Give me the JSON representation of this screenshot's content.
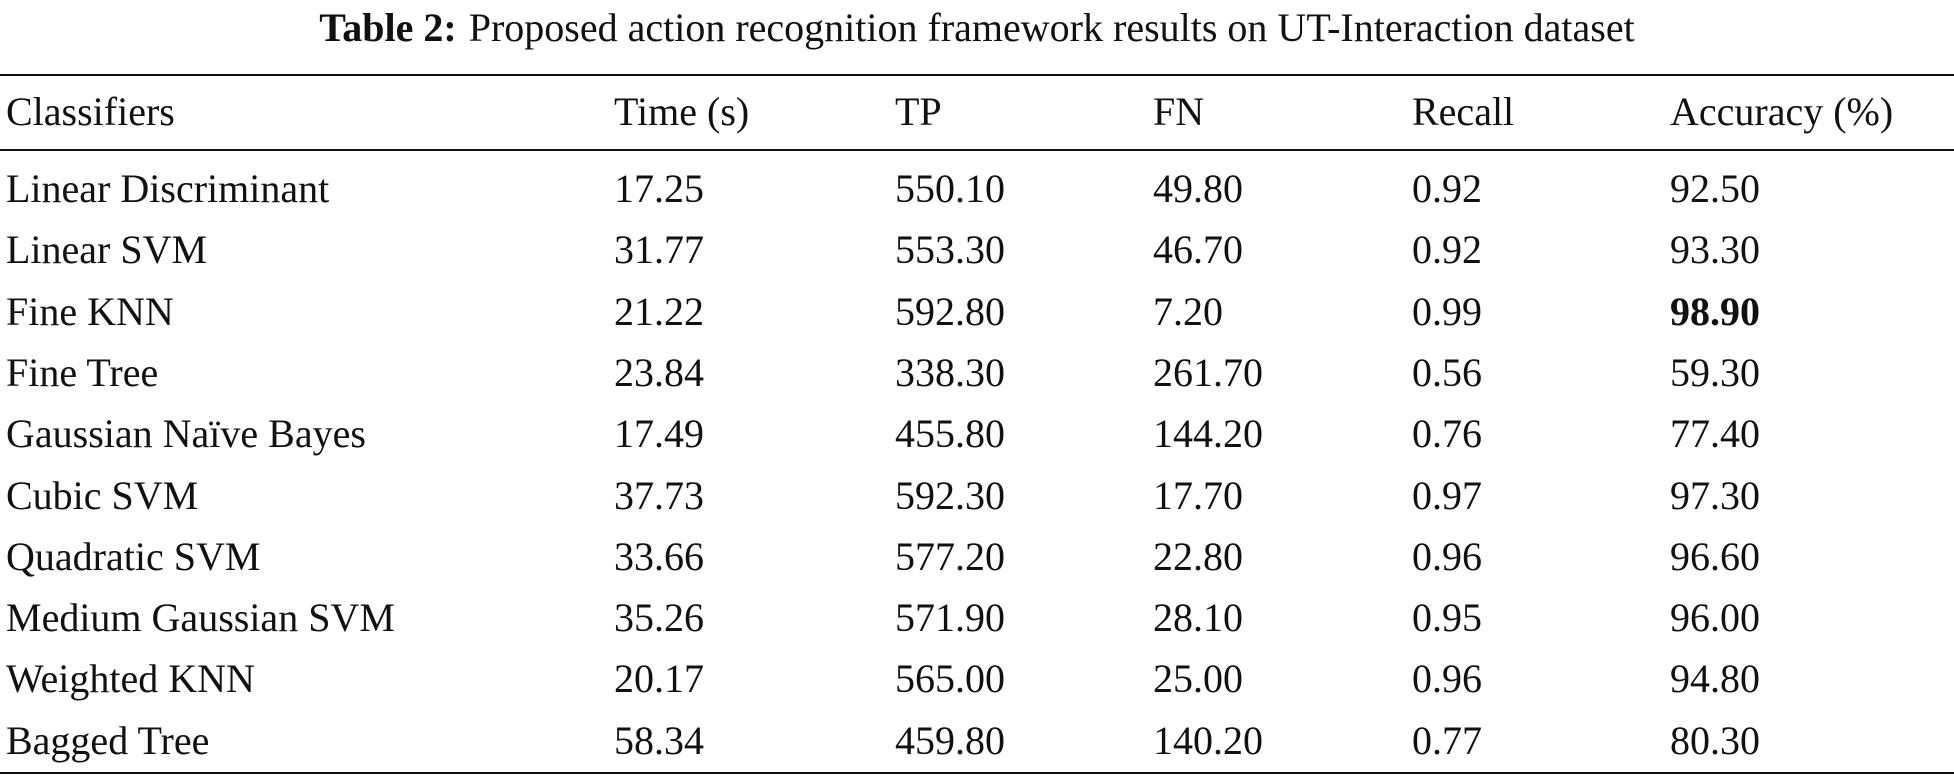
{
  "table": {
    "caption_label": "Table 2:",
    "caption": "Proposed action recognition framework results on UT-Interaction dataset",
    "header": [
      "Classifiers",
      "Time (s)",
      "TP",
      "FN",
      "Recall",
      "Accuracy (%)"
    ],
    "rows": [
      [
        "Linear Discriminant",
        "17.25",
        "550.10",
        "49.80",
        "0.92",
        "92.50"
      ],
      [
        "Linear SVM",
        "31.77",
        "553.30",
        "46.70",
        "0.92",
        "93.30"
      ],
      [
        "Fine KNN",
        "21.22",
        "592.80",
        "7.20",
        "0.99",
        "98.90"
      ],
      [
        "Fine Tree",
        "23.84",
        "338.30",
        "261.70",
        "0.56",
        "59.30"
      ],
      [
        "Gaussian Naïve Bayes",
        "17.49",
        "455.80",
        "144.20",
        "0.76",
        "77.40"
      ],
      [
        "Cubic SVM",
        "37.73",
        "592.30",
        "17.70",
        "0.97",
        "97.30"
      ],
      [
        "Quadratic SVM",
        "33.66",
        "577.20",
        "22.80",
        "0.96",
        "96.60"
      ],
      [
        "Medium Gaussian SVM",
        "35.26",
        "571.90",
        "28.10",
        "0.95",
        "96.00"
      ],
      [
        "Weighted KNN",
        "20.17",
        "565.00",
        "25.00",
        "0.96",
        "94.80"
      ],
      [
        "Bagged Tree",
        "58.34",
        "459.80",
        "140.20",
        "0.77",
        "80.30"
      ]
    ]
  }
}
